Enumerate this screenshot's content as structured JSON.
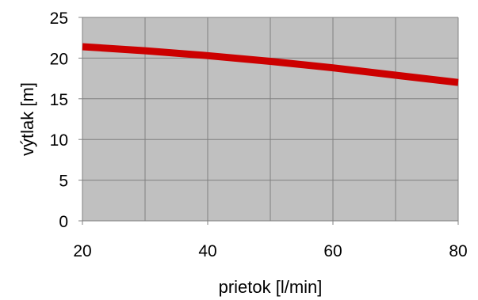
{
  "chart_data": {
    "type": "line",
    "title": "",
    "xlabel": "prietok [l/min]",
    "ylabel": "výtlak [m]",
    "xlim": [
      20,
      80
    ],
    "ylim": [
      0,
      25
    ],
    "x_ticks": [
      "20",
      "40",
      "60",
      "80"
    ],
    "y_ticks": [
      "0",
      "5",
      "10",
      "15",
      "20",
      "25"
    ],
    "grid": true,
    "legend": "none",
    "series": [
      {
        "x": [
          20,
          30,
          40,
          50,
          60,
          70,
          80
        ],
        "y": [
          21.4,
          20.9,
          20.3,
          19.6,
          18.8,
          17.9,
          17.0
        ]
      }
    ],
    "colors": {
      "plot_background": "#c0c0c0",
      "grid": "#808080",
      "line": "#cc0000"
    }
  }
}
